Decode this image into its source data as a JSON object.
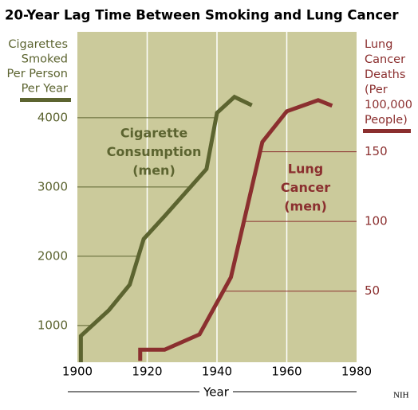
{
  "chart_data": {
    "type": "line",
    "title": "20-Year Lag Time Between Smoking and Lung Cancer",
    "x_label": "Year",
    "y_label": [
      "Cigarettes",
      "Smoked",
      "Per Person",
      "Per Year"
    ],
    "y2_label": [
      "Lung",
      "Cancer",
      "Deaths",
      "(Per",
      "100,000",
      "People)"
    ],
    "annotations": [
      [
        "Cigarette",
        "Consumption",
        "(men)"
      ],
      [
        "Lung",
        "Cancer",
        "(men)"
      ]
    ],
    "source": "NIH",
    "xlim": [
      1900,
      1980
    ],
    "xticks": [
      1900,
      1920,
      1940,
      1960,
      1980
    ],
    "ylim": [
      470,
      5240
    ],
    "yticks": [
      1000,
      2000,
      3000,
      4000
    ],
    "y2lim": [
      -1,
      236
    ],
    "y2ticks": [
      50,
      100,
      150
    ],
    "background": "#cbca9b",
    "grid_color": "#ffffff",
    "series": [
      {
        "color": "#5c6430",
        "axis": "y",
        "x": [
          1901,
          1901,
          1909,
          1915,
          1919,
          1925,
          1937,
          1940,
          1945,
          1950
        ],
        "values": [
          470,
          850,
          1220,
          1590,
          2250,
          2580,
          3260,
          4070,
          4300,
          4180
        ]
      },
      {
        "color": "#8b2f2f",
        "axis": "y2",
        "x": [
          1918,
          1918,
          1925,
          1935,
          1944,
          1953,
          1960,
          1969,
          1973
        ],
        "values": [
          0,
          8,
          8,
          19,
          60,
          157,
          179,
          187,
          183
        ]
      }
    ]
  }
}
